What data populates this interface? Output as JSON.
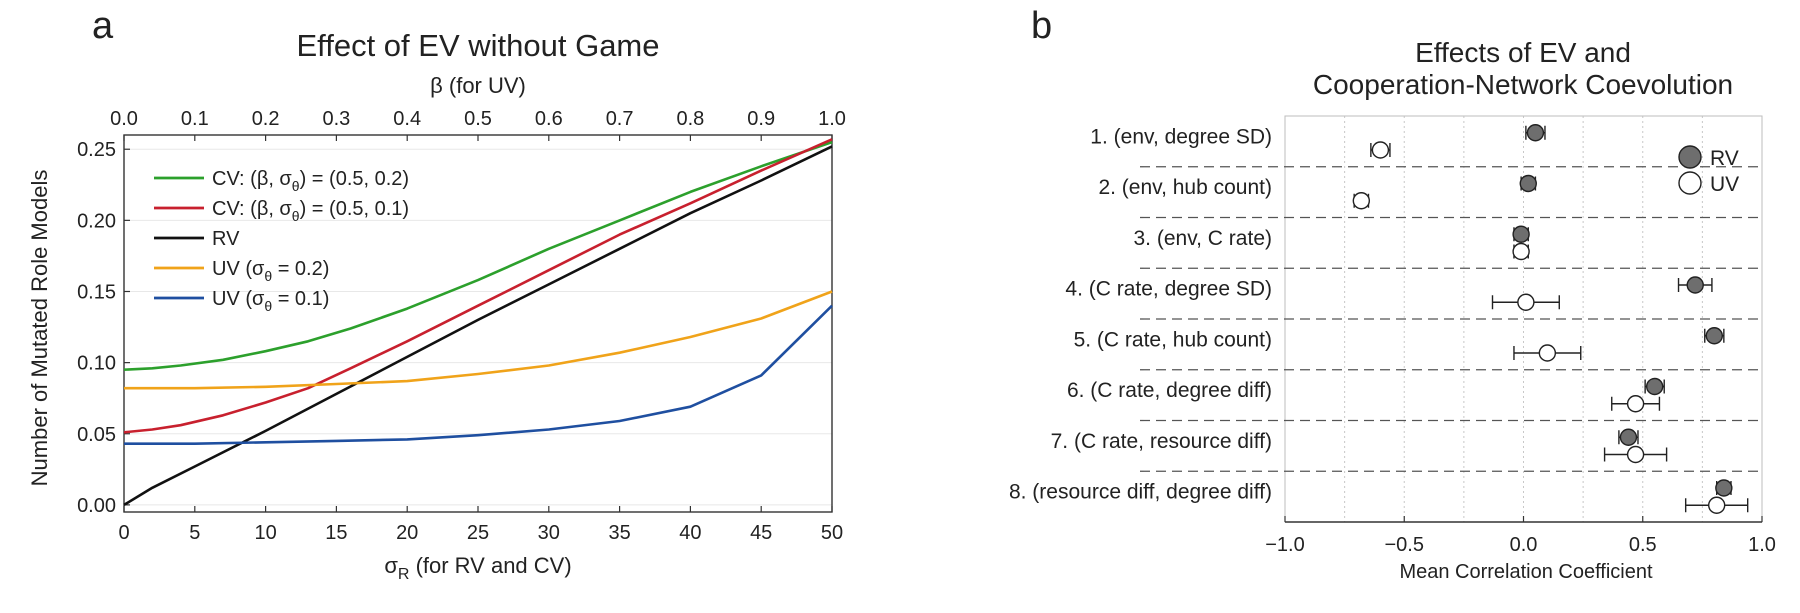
{
  "panel_a": {
    "letter": "a",
    "title": "Effect of EV without Game",
    "top_axis_label": "β (for UV)",
    "bottom_axis_label_main": "σ",
    "bottom_axis_label_sub": "R",
    "bottom_axis_label_rest": " (for RV and CV)",
    "legend": [
      {
        "name": "cv02",
        "pre": "CV: (β, σ",
        "sub": "θ",
        "post": ") = (0.5, 0.2)",
        "color": "#2ca02c"
      },
      {
        "name": "cv01",
        "pre": "CV: (β, σ",
        "sub": "θ",
        "post": ") = (0.5, 0.1)",
        "color": "#c8202e"
      },
      {
        "name": "rv",
        "pre": "RV",
        "sub": "",
        "post": "",
        "color": "#111111"
      },
      {
        "name": "uv02",
        "pre": "UV (σ",
        "sub": "θ",
        "post": " = 0.2)",
        "color": "#f0a31a"
      },
      {
        "name": "uv01",
        "pre": "UV (σ",
        "sub": "θ",
        "post": " = 0.1)",
        "color": "#1f4fa0"
      }
    ]
  },
  "chart_data": [
    {
      "type": "line",
      "title": "Effect of EV without Game",
      "xlabel": "σR (for RV and CV)",
      "x2label": "β (for UV)",
      "ylabel": "Number of Mutated Role Models",
      "xlim": [
        0,
        50
      ],
      "x2lim": [
        0.0,
        1.0
      ],
      "ylim": [
        -0.005,
        0.26
      ],
      "xticks": [
        "0",
        "5",
        "10",
        "15",
        "20",
        "25",
        "30",
        "35",
        "40",
        "45",
        "50"
      ],
      "x2ticks": [
        "0.0",
        "0.1",
        "0.2",
        "0.3",
        "0.4",
        "0.5",
        "0.6",
        "0.7",
        "0.8",
        "0.9",
        "1.0"
      ],
      "yticks": [
        "0.00",
        "0.05",
        "0.10",
        "0.15",
        "0.20",
        "0.25"
      ],
      "series": [
        {
          "name": "CV: (β, σθ) = (0.5, 0.2)",
          "axis": "bottom",
          "color": "#2ca02c",
          "x": [
            0,
            2,
            4,
            7,
            10,
            13,
            16,
            20,
            25,
            30,
            35,
            40,
            45,
            50
          ],
          "y": [
            0.095,
            0.096,
            0.098,
            0.102,
            0.108,
            0.115,
            0.124,
            0.138,
            0.158,
            0.18,
            0.2,
            0.22,
            0.238,
            0.255
          ]
        },
        {
          "name": "CV: (β, σθ) = (0.5, 0.1)",
          "axis": "bottom",
          "color": "#c8202e",
          "x": [
            0,
            2,
            4,
            7,
            10,
            13,
            16,
            20,
            25,
            30,
            35,
            40,
            45,
            50
          ],
          "y": [
            0.051,
            0.053,
            0.056,
            0.063,
            0.072,
            0.082,
            0.096,
            0.115,
            0.14,
            0.165,
            0.19,
            0.212,
            0.235,
            0.257
          ]
        },
        {
          "name": "RV",
          "axis": "bottom",
          "color": "#111111",
          "x": [
            0,
            2,
            5,
            10,
            15,
            20,
            25,
            30,
            35,
            40,
            45,
            50
          ],
          "y": [
            0.0,
            0.012,
            0.027,
            0.052,
            0.078,
            0.104,
            0.13,
            0.155,
            0.18,
            0.205,
            0.228,
            0.252
          ]
        },
        {
          "name": "UV (σθ = 0.2)",
          "axis": "top",
          "color": "#f0a31a",
          "x": [
            0.0,
            0.1,
            0.2,
            0.3,
            0.4,
            0.5,
            0.6,
            0.7,
            0.8,
            0.9,
            1.0
          ],
          "y": [
            0.082,
            0.082,
            0.083,
            0.085,
            0.087,
            0.092,
            0.098,
            0.107,
            0.118,
            0.131,
            0.15
          ]
        },
        {
          "name": "UV (σθ = 0.1)",
          "axis": "top",
          "color": "#1f4fa0",
          "x": [
            0.0,
            0.1,
            0.2,
            0.3,
            0.4,
            0.5,
            0.6,
            0.7,
            0.8,
            0.85,
            0.9,
            1.0
          ],
          "y": [
            0.043,
            0.043,
            0.044,
            0.045,
            0.046,
            0.049,
            0.053,
            0.059,
            0.069,
            0.08,
            0.091,
            0.14
          ]
        }
      ]
    },
    {
      "type": "scatter",
      "title_lines": [
        "Effects of EV and",
        "Cooperation-Network Coevolution"
      ],
      "xlabel": "Mean Correlation Coefficient",
      "xlim": [
        -1.0,
        1.0
      ],
      "xticks": [
        "−1.0",
        "−0.5",
        "0.0",
        "0.5",
        "1.0"
      ],
      "legend": [
        {
          "name": "RV",
          "fill": "#6e6e6e"
        },
        {
          "name": "UV",
          "fill": "#ffffff"
        }
      ],
      "categories": [
        "1. (env, degree SD)",
        "2. (env, hub count)",
        "3. (env, C rate)",
        "4. (C rate, degree SD)",
        "5. (C rate, hub count)",
        "6. (C rate, degree diff)",
        "7. (C rate, resource diff)",
        "8. (resource diff, degree diff)"
      ],
      "series": [
        {
          "name": "RV",
          "mean": [
            0.05,
            0.02,
            -0.01,
            0.72,
            0.8,
            0.55,
            0.44,
            0.84
          ],
          "err": [
            0.04,
            0.03,
            0.03,
            0.07,
            0.04,
            0.04,
            0.04,
            0.03
          ]
        },
        {
          "name": "UV",
          "mean": [
            -0.6,
            -0.68,
            -0.01,
            0.01,
            0.1,
            0.47,
            0.47,
            0.81
          ],
          "err": [
            0.04,
            0.03,
            0.03,
            0.14,
            0.14,
            0.1,
            0.13,
            0.13
          ]
        }
      ]
    }
  ]
}
